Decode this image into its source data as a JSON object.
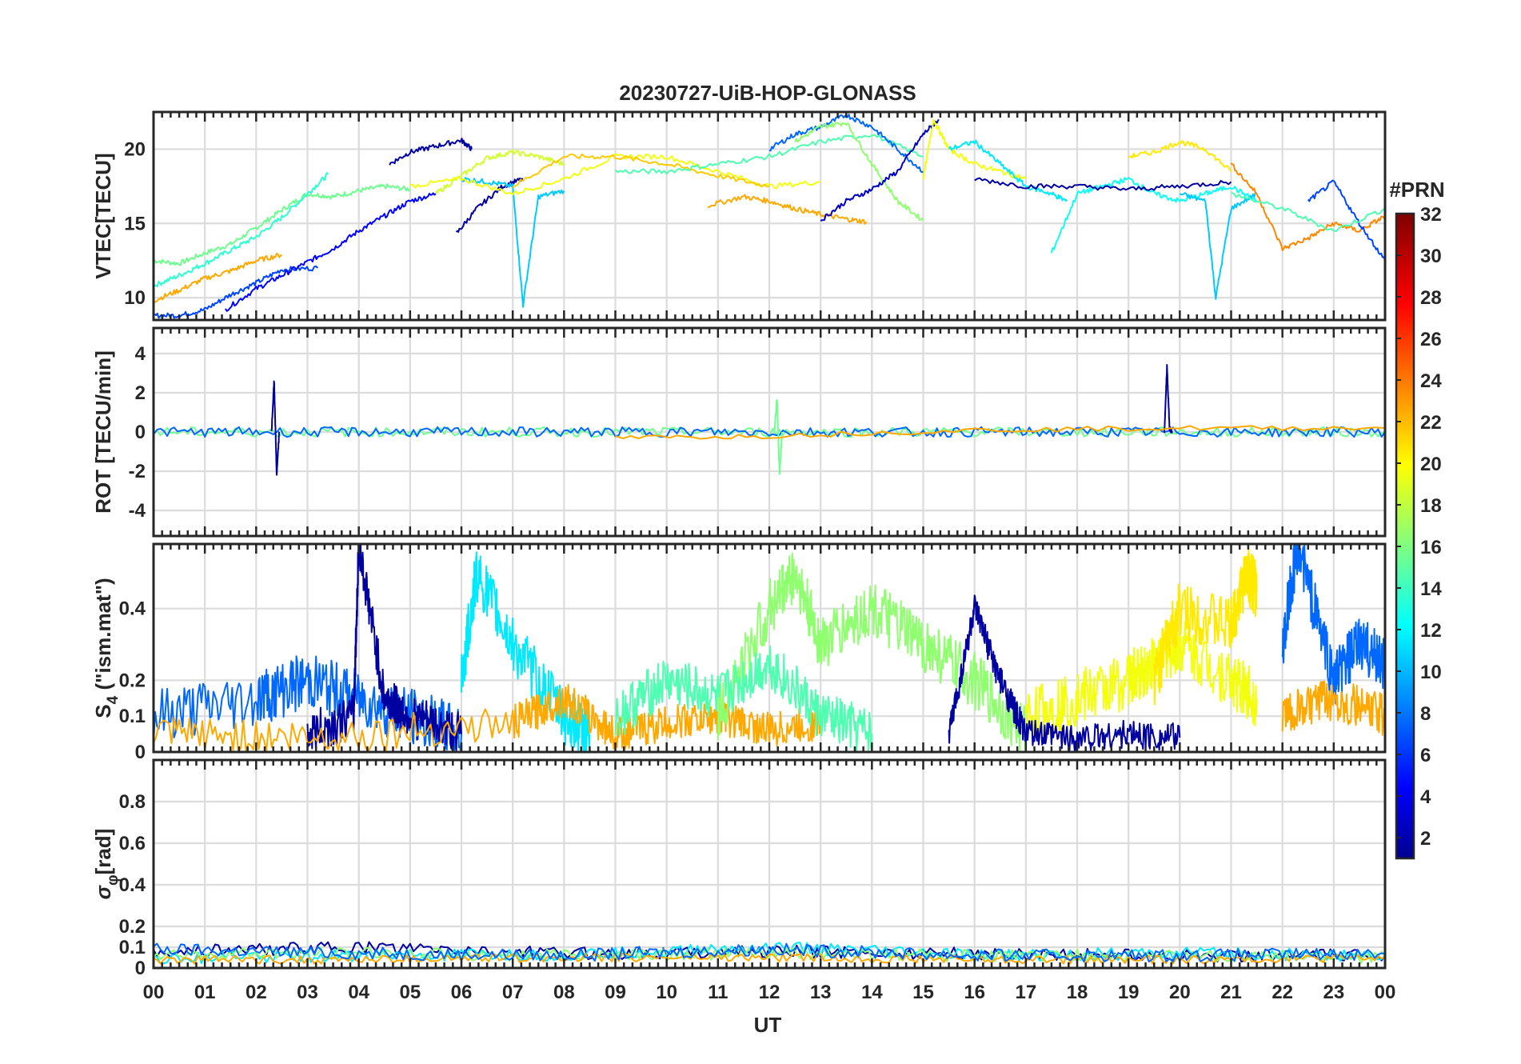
{
  "chart_data": {
    "type": "line",
    "title": "20230727-UiB-HOP-GLONASS",
    "xlabel": "UT",
    "x_tick_labels": [
      "00",
      "01",
      "02",
      "03",
      "04",
      "05",
      "06",
      "07",
      "08",
      "09",
      "10",
      "11",
      "12",
      "13",
      "14",
      "15",
      "16",
      "17",
      "18",
      "19",
      "20",
      "21",
      "22",
      "23",
      "00"
    ],
    "xlim_hours": [
      0,
      24
    ],
    "grid": true,
    "colorbar": {
      "label": "#PRN",
      "range": [
        1,
        32
      ],
      "colormap": "jet",
      "ticks": [
        "32",
        "30",
        "28",
        "26",
        "24",
        "22",
        "20",
        "18",
        "16",
        "14",
        "12",
        "10",
        "8",
        "6",
        "4",
        "2"
      ]
    },
    "panels": [
      {
        "id": "vtec",
        "ylabel": "VTEC[TECU]",
        "ylim": [
          8.5,
          22.5
        ],
        "yticks": [
          10,
          15,
          20
        ],
        "ytick_labels": [
          "10",
          "15",
          "20"
        ],
        "series": [
          {
            "prn": 16,
            "x": [
              0,
              0.5,
              1,
              1.5,
              2,
              2.5,
              3,
              3.5,
              4,
              4.5,
              5
            ],
            "y": [
              12.5,
              12.3,
              13,
              13.6,
              14.7,
              15.9,
              17,
              16.8,
              17.2,
              17.5,
              17.3
            ]
          },
          {
            "prn": 14,
            "x": [
              0,
              0.5,
              1,
              1.5,
              2,
              2.5,
              3,
              3.4
            ],
            "y": [
              10.8,
              11.5,
              12.3,
              13.2,
              14.1,
              15.4,
              17,
              18.3
            ]
          },
          {
            "prn": 7,
            "x": [
              0,
              0.5,
              1,
              1.5,
              2,
              2.5,
              3.2
            ],
            "y": [
              8.8,
              8.8,
              9.2,
              10.2,
              11,
              11.9,
              12
            ]
          },
          {
            "prn": 5,
            "x": [
              1.4,
              2,
              2.5,
              3,
              3.5,
              4,
              4.5,
              5,
              5.5
            ],
            "y": [
              9.2,
              10.6,
              11.5,
              12.4,
              13.3,
              14.5,
              15.5,
              16.5,
              17
            ]
          },
          {
            "prn": 23,
            "x": [
              0,
              0.5,
              1,
              1.5,
              2,
              2.5
            ],
            "y": [
              9.8,
              10.5,
              11.3,
              11.8,
              12.5,
              12.9
            ]
          },
          {
            "prn": 2,
            "x": [
              4.6,
              5,
              5.5,
              6,
              6.2
            ],
            "y": [
              19,
              19.8,
              20.2,
              20.6,
              20
            ]
          },
          {
            "prn": 2,
            "x": [
              5.9,
              6.3,
              6.8,
              7.2
            ],
            "y": [
              14.3,
              16,
              17.5,
              18
            ]
          },
          {
            "prn": 19,
            "x": [
              5.5,
              6,
              6.5,
              7,
              7.5,
              8
            ],
            "y": [
              17,
              18.2,
              19.4,
              19.8,
              19.5,
              19
            ]
          },
          {
            "prn": 11,
            "x": [
              6,
              6.5,
              7,
              7.2,
              7.5,
              8
            ],
            "y": [
              18,
              17.8,
              17.5,
              9.5,
              16.8,
              17.2
            ]
          },
          {
            "prn": 20,
            "x": [
              5,
              6,
              7,
              8,
              9,
              10,
              11,
              12,
              13
            ],
            "y": [
              17.5,
              18,
              17,
              18,
              19.5,
              19.5,
              18.5,
              17.5,
              17.8
            ]
          },
          {
            "prn": 22,
            "x": [
              7,
              8,
              9,
              10,
              11,
              12
            ],
            "y": [
              17.5,
              19.5,
              19.5,
              19,
              18.2,
              17.5
            ]
          },
          {
            "prn": 23,
            "x": [
              10.8,
              11.5,
              12,
              12.5,
              13,
              13.5,
              13.9
            ],
            "y": [
              16.2,
              16.8,
              16.5,
              16,
              15.6,
              15.3,
              15.1
            ]
          },
          {
            "prn": 15,
            "x": [
              9,
              10,
              11,
              12,
              13,
              14,
              15
            ],
            "y": [
              18.5,
              18.5,
              19,
              19.5,
              20.5,
              21,
              19.5
            ]
          },
          {
            "prn": 8,
            "x": [
              12,
              12.5,
              13,
              13.5,
              14,
              14.5,
              15
            ],
            "y": [
              20,
              21,
              21.5,
              22.3,
              21.5,
              20,
              18.5
            ]
          },
          {
            "prn": 17,
            "x": [
              12.5,
              13,
              13.5,
              14,
              14.5,
              15
            ],
            "y": [
              20.5,
              21.5,
              21.8,
              19,
              16.5,
              15.2
            ]
          },
          {
            "prn": 3,
            "x": [
              13,
              13.5,
              14,
              14.5,
              15,
              15.3
            ],
            "y": [
              15.2,
              16.5,
              17.3,
              18.5,
              21,
              22
            ]
          },
          {
            "prn": 20,
            "x": [
              15,
              15.2,
              15.5,
              16,
              16.5,
              17
            ],
            "y": [
              18,
              22,
              20,
              19,
              18.5,
              18
            ]
          },
          {
            "prn": 12,
            "x": [
              15.5,
              16,
              16.5,
              17,
              17.5,
              17.8
            ],
            "y": [
              20,
              20.5,
              19,
              17.5,
              17,
              16.5
            ]
          },
          {
            "prn": 13,
            "x": [
              17.5,
              18,
              18.5,
              19,
              19.5,
              20,
              20.5,
              21,
              21.5
            ],
            "y": [
              13,
              17,
              17.5,
              18,
              17,
              16.5,
              17,
              17.5,
              16.5
            ]
          },
          {
            "prn": 11,
            "x": [
              20,
              20.5,
              20.7,
              21,
              21.5
            ],
            "y": [
              17,
              16.5,
              10,
              16,
              17
            ]
          },
          {
            "prn": 21,
            "x": [
              19,
              19.5,
              20,
              20.5,
              21
            ],
            "y": [
              19.5,
              19.8,
              20.5,
              20,
              18.5
            ]
          },
          {
            "prn": 2,
            "x": [
              16,
              17,
              18,
              19,
              20,
              21
            ],
            "y": [
              18,
              17.5,
              17.5,
              17.3,
              17.5,
              17.8
            ]
          },
          {
            "prn": 24,
            "x": [
              21,
              21.5,
              22,
              22.5,
              23,
              23.5,
              24
            ],
            "y": [
              19,
              17,
              13.3,
              14,
              15,
              14.5,
              15.5
            ]
          },
          {
            "prn": 7,
            "x": [
              22.5,
              23,
              23.5,
              24
            ],
            "y": [
              16.5,
              17.8,
              15,
              12.5
            ]
          },
          {
            "prn": 15,
            "x": [
              21,
              22,
              23,
              24
            ],
            "y": [
              17,
              16,
              14.5,
              16
            ]
          }
        ]
      },
      {
        "id": "rot",
        "ylabel": "ROT [TECU/min]",
        "ylim": [
          -5.3,
          5.3
        ],
        "yticks": [
          -4,
          -2,
          0,
          2,
          4
        ],
        "ytick_labels": [
          "-4",
          "-2",
          "0",
          "2",
          "4"
        ],
        "series": [
          {
            "prn": 16,
            "x": [
              0,
              4,
              8,
              12,
              16,
              20,
              24
            ],
            "y": [
              0,
              0,
              0,
              0,
              0,
              0,
              0
            ],
            "noise": 0.25
          },
          {
            "prn": 8,
            "x": [
              0,
              4,
              8,
              12,
              16,
              20,
              24
            ],
            "y": [
              0,
              0,
              0,
              0,
              0,
              0,
              0
            ],
            "noise": 0.25
          },
          {
            "prn": 2,
            "x": [
              2.3,
              2.35,
              2.4,
              2.45
            ],
            "y": [
              0,
              2.6,
              -2.2,
              0
            ]
          },
          {
            "prn": 2,
            "x": [
              19.7,
              19.75,
              19.8,
              19.85
            ],
            "y": [
              0,
              3.3,
              0.2,
              0
            ]
          },
          {
            "prn": 16,
            "x": [
              12.1,
              12.15,
              12.2,
              12.25
            ],
            "y": [
              0,
              1.7,
              -2.1,
              0
            ]
          },
          {
            "prn": 23,
            "x": [
              9,
              12,
              16,
              20,
              24
            ],
            "y": [
              -0.3,
              -0.2,
              0.1,
              0.2,
              0.2
            ]
          }
        ]
      },
      {
        "id": "s4",
        "ylabel_main": "S",
        "ylabel_sub": "4",
        "ylabel_rest": " (\"ism.mat\")",
        "ylim": [
          0,
          0.58
        ],
        "yticks": [
          0,
          0.1,
          0.2,
          0.4
        ],
        "ytick_labels": [
          "0",
          "0.1",
          "0.2",
          "0.4"
        ],
        "series": [
          {
            "prn": 8,
            "x": [
              0,
              2,
              3,
              4,
              5,
              6
            ],
            "y": [
              0.1,
              0.15,
              0.2,
              0.15,
              0.1,
              0.05
            ],
            "noise": 0.08
          },
          {
            "prn": 2,
            "x": [
              3,
              3.9,
              4,
              4.5,
              5,
              6
            ],
            "y": [
              0.05,
              0.1,
              0.58,
              0.15,
              0.1,
              0.05
            ],
            "noise": 0.06
          },
          {
            "prn": 12,
            "x": [
              6,
              6.3,
              7,
              8,
              8.5
            ],
            "y": [
              0.2,
              0.5,
              0.3,
              0.1,
              0.05
            ],
            "noise": 0.08
          },
          {
            "prn": 23,
            "x": [
              0,
              3,
              7,
              8,
              9,
              10,
              11,
              12,
              13
            ],
            "y": [
              0.05,
              0.04,
              0.08,
              0.15,
              0.05,
              0.08,
              0.1,
              0.06,
              0.08
            ],
            "noise": 0.05
          },
          {
            "prn": 17,
            "x": [
              11,
              12,
              12.5,
              13,
              14,
              15,
              16,
              17
            ],
            "y": [
              0.1,
              0.4,
              0.5,
              0.3,
              0.4,
              0.3,
              0.2,
              0.05
            ],
            "noise": 0.08
          },
          {
            "prn": 15,
            "x": [
              9,
              10,
              11,
              12,
              13,
              14
            ],
            "y": [
              0.1,
              0.2,
              0.15,
              0.25,
              0.1,
              0.05
            ],
            "noise": 0.07
          },
          {
            "prn": 20,
            "x": [
              17,
              18,
              19,
              19.5,
              20,
              21,
              21.5
            ],
            "y": [
              0.1,
              0.15,
              0.2,
              0.25,
              0.3,
              0.2,
              0.15
            ],
            "noise": 0.08
          },
          {
            "prn": 21,
            "x": [
              19.5,
              20,
              21,
              21.3,
              21.5
            ],
            "y": [
              0.2,
              0.4,
              0.35,
              0.5,
              0.45
            ],
            "noise": 0.08
          },
          {
            "prn": 2,
            "x": [
              15.5,
              16,
              16.5,
              17,
              18,
              19,
              20
            ],
            "y": [
              0.05,
              0.4,
              0.2,
              0.05,
              0.04,
              0.05,
              0.04
            ],
            "noise": 0.04
          },
          {
            "prn": 8,
            "x": [
              22,
              22.3,
              23,
              23.5,
              24
            ],
            "y": [
              0.3,
              0.58,
              0.2,
              0.3,
              0.25
            ],
            "noise": 0.08
          },
          {
            "prn": 23,
            "x": [
              22,
              23,
              24
            ],
            "y": [
              0.1,
              0.15,
              0.1
            ],
            "noise": 0.06
          }
        ]
      },
      {
        "id": "sigma",
        "ylabel_main": "σ",
        "ylabel_sub": "φ",
        "ylabel_rest": "[rad]",
        "ylim": [
          0,
          1.0
        ],
        "yticks": [
          0,
          0.1,
          0.2,
          0.4,
          0.6,
          0.8
        ],
        "ytick_labels": [
          "0",
          "0.1",
          "0.2",
          "0.4",
          "0.6",
          "0.8"
        ],
        "series": [
          {
            "prn": 2,
            "x": [
              0,
              4,
              8,
              12,
              16,
              20,
              24
            ],
            "y": [
              0.08,
              0.1,
              0.07,
              0.08,
              0.07,
              0.06,
              0.06
            ],
            "noise": 0.03
          },
          {
            "prn": 12,
            "x": [
              0,
              4,
              8,
              12,
              16,
              20,
              24
            ],
            "y": [
              0.05,
              0.06,
              0.06,
              0.1,
              0.06,
              0.07,
              0.06
            ],
            "noise": 0.03
          },
          {
            "prn": 17,
            "x": [
              0,
              4,
              8,
              12,
              16,
              20,
              24
            ],
            "y": [
              0.06,
              0.07,
              0.06,
              0.07,
              0.06,
              0.06,
              0.05
            ],
            "noise": 0.03
          },
          {
            "prn": 23,
            "x": [
              0,
              4,
              8,
              12,
              16,
              20,
              24
            ],
            "y": [
              0.04,
              0.04,
              0.05,
              0.05,
              0.04,
              0.04,
              0.05
            ],
            "noise": 0.02
          },
          {
            "prn": 8,
            "x": [
              0,
              4,
              8,
              12,
              16,
              20,
              24
            ],
            "y": [
              0.09,
              0.07,
              0.06,
              0.09,
              0.06,
              0.06,
              0.07
            ],
            "noise": 0.03
          }
        ]
      }
    ]
  }
}
